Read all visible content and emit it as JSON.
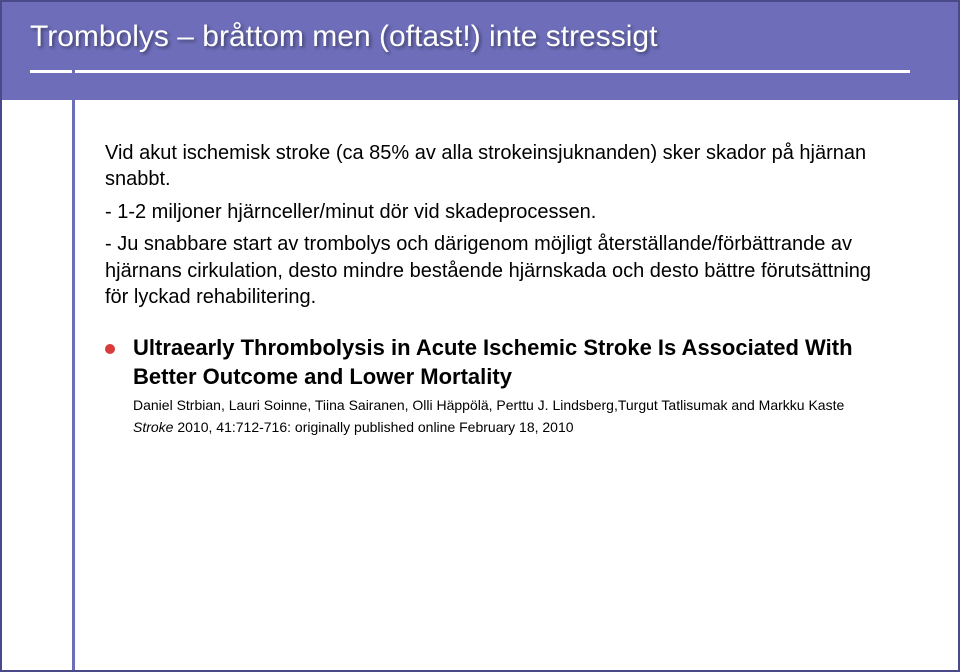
{
  "slide": {
    "title": "Trombolys – bråttom men (oftast!) inte stressigt",
    "header_bg": "#6d6db9",
    "title_color": "#ffffff",
    "vertline_color": "#6d6db9",
    "bullet_color": "#d93a3a",
    "border_color": "#4a4a8a",
    "background": "#ffffff",
    "para1": "Vid akut ischemisk stroke (ca 85% av alla strokeinsjuknanden) sker skador på hjärnan snabbt.",
    "para2": "- 1-2 miljoner hjärnceller/minut dör vid skadeprocessen.",
    "para3": "- Ju snabbare start av trombolys och därigenom möjligt återställande/förbättrande av hjärnans cirkulation, desto mindre bestående hjärnskada och desto bättre förutsättning för lyckad rehabilitering.",
    "bullet_title": "Ultraearly Thrombolysis in Acute Ischemic Stroke Is Associated With Better Outcome and Lower Mortality",
    "cite_authors": "Daniel Strbian, Lauri Soinne, Tiina Sairanen, Olli Häppölä, Perttu J. Lindsberg,Turgut Tatlisumak and Markku Kaste",
    "cite_journal": "Stroke",
    "cite_rest": " 2010, 41:712-716: originally published online February 18, 2010"
  },
  "typography": {
    "title_fontsize": 30,
    "body_fontsize": 20,
    "strong_fontsize": 22,
    "cite_fontsize": 14
  }
}
